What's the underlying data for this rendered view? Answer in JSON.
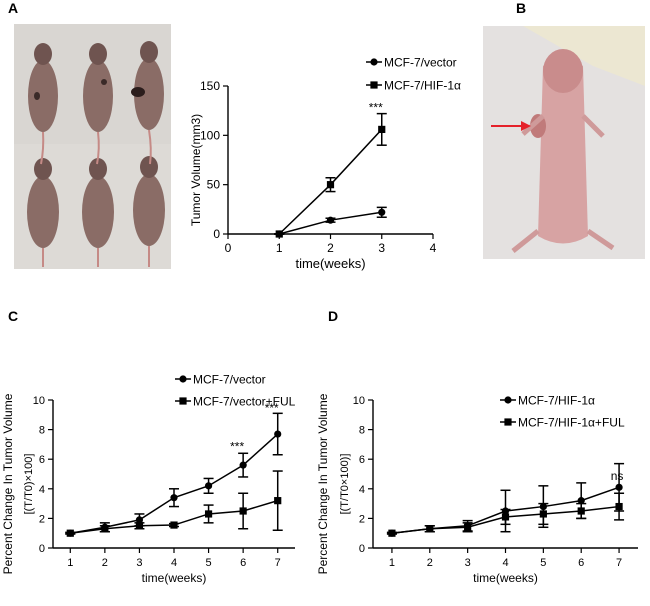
{
  "panels": {
    "a": "A",
    "b": "B",
    "c": "C",
    "d": "D"
  },
  "chart_data": [
    {
      "panel": "A",
      "type": "line",
      "xlabel": "time(weeks)",
      "ylabel": "Tumor Volume(mm3)",
      "xlim": [
        0,
        4
      ],
      "ylim": [
        0,
        150
      ],
      "xticks": [
        0,
        1,
        2,
        3,
        4
      ],
      "yticks": [
        0,
        50,
        100,
        150
      ],
      "x": [
        1,
        2,
        3
      ],
      "series": [
        {
          "name": "MCF-7/vector",
          "marker": "circle",
          "values": [
            0,
            14,
            22
          ],
          "errors": [
            0,
            2,
            5
          ]
        },
        {
          "name": "MCF-7/HIF-1α",
          "marker": "square",
          "values": [
            0,
            50,
            106
          ],
          "errors": [
            0,
            7,
            16
          ]
        }
      ],
      "annotations": [
        {
          "x": 3,
          "y": 124,
          "text": "***"
        }
      ],
      "legend": "top-right",
      "grid": false
    },
    {
      "panel": "C",
      "type": "line",
      "xlabel": "time(weeks)",
      "ylabel": "Percent Change In Tumor Volume",
      "ylabel2": "[(T/T0)×100]",
      "xlim": [
        0.5,
        7.5
      ],
      "ylim": [
        0,
        10
      ],
      "xticks": [
        1,
        2,
        3,
        4,
        5,
        6,
        7
      ],
      "yticks": [
        0,
        2,
        4,
        6,
        8,
        10
      ],
      "x": [
        1,
        2,
        3,
        4,
        5,
        6,
        7
      ],
      "series": [
        {
          "name": "MCF-7/vector",
          "marker": "circle",
          "values": [
            1.0,
            1.4,
            1.9,
            3.4,
            4.2,
            5.6,
            7.7
          ],
          "errors": [
            0.05,
            0.3,
            0.4,
            0.6,
            0.5,
            0.8,
            1.4
          ]
        },
        {
          "name": "MCF-7/vector+FUL",
          "marker": "square",
          "values": [
            1.0,
            1.3,
            1.5,
            1.55,
            2.3,
            2.5,
            3.2
          ],
          "errors": [
            0.05,
            0.2,
            0.2,
            0.1,
            0.6,
            1.2,
            2.0
          ]
        }
      ],
      "annotations": [
        {
          "x": 6,
          "y": 6.6,
          "text": "***"
        },
        {
          "x": 7,
          "y": 9.2,
          "text": "***"
        }
      ],
      "legend": "top-right",
      "grid": false
    },
    {
      "panel": "D",
      "type": "line",
      "xlabel": "time(weeks)",
      "ylabel": "Percent Change In Tumor Volume",
      "ylabel2": "[(T/T0×100)]",
      "xlim": [
        0.5,
        7.5
      ],
      "ylim": [
        0,
        10
      ],
      "xticks": [
        1,
        2,
        3,
        4,
        5,
        6,
        7
      ],
      "yticks": [
        0,
        2,
        4,
        6,
        8,
        10
      ],
      "x": [
        1,
        2,
        3,
        4,
        5,
        6,
        7
      ],
      "series": [
        {
          "name": "MCF-7/HIF-1α",
          "marker": "circle",
          "values": [
            1.0,
            1.3,
            1.5,
            2.5,
            2.8,
            3.2,
            4.1
          ],
          "errors": [
            0.05,
            0.2,
            0.35,
            1.4,
            1.4,
            1.2,
            1.6
          ]
        },
        {
          "name": "MCF-7/HIF-1α+FUL",
          "marker": "square",
          "values": [
            1.0,
            1.3,
            1.4,
            2.1,
            2.3,
            2.5,
            2.8
          ],
          "errors": [
            0.05,
            0.2,
            0.3,
            0.5,
            0.7,
            0.5,
            0.9
          ]
        }
      ],
      "annotations": [
        {
          "x": 7,
          "y": 4.6,
          "text": "ns"
        }
      ],
      "legend": "top-right",
      "grid": false
    }
  ]
}
